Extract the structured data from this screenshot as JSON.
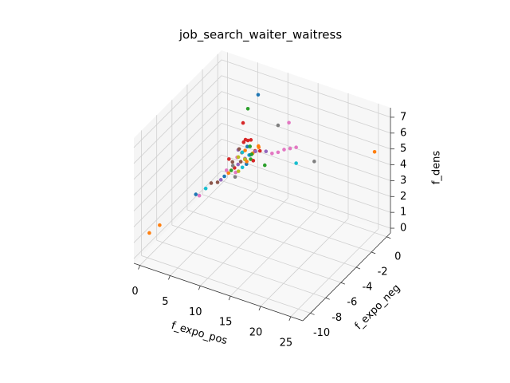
{
  "chart_data": {
    "type": "scatter3d",
    "title": "job_search_waiter_waitress",
    "xlabel": "f_expo_pos",
    "ylabel": "f_expo_neg",
    "zlabel": "f_dens",
    "xlim": [
      -1,
      27
    ],
    "ylim": [
      -11,
      0.5
    ],
    "zlim": [
      -0.3,
      7.6
    ],
    "xticks": [
      0,
      5,
      10,
      15,
      20,
      25
    ],
    "yticks": [
      -10,
      -8,
      -6,
      -4,
      -2,
      0
    ],
    "zticks": [
      0,
      1,
      2,
      3,
      4,
      5,
      6,
      7
    ],
    "grid": true,
    "series": [
      {
        "x": [
          0.3,
          1,
          25,
          5.7,
          4,
          3.2,
          9,
          10.8,
          15,
          12,
          0.3,
          0.5,
          0.8,
          1.2,
          8,
          9,
          10,
          11,
          12,
          6,
          7,
          2,
          2.3,
          2.5,
          2.8,
          3,
          3.2,
          3.5,
          3.8,
          4,
          4.2,
          4.5,
          4.8,
          5,
          5.2,
          5.5,
          2.2,
          2.6,
          3,
          3.3,
          3.6,
          3.9,
          4.3,
          4.6,
          2,
          2.4,
          2.8,
          3.1,
          3.4,
          3.7,
          4.1,
          4.4,
          4.7,
          5.1,
          5.4,
          1.8,
          1.5,
          2.1,
          2.9,
          3.3,
          3.6,
          4,
          4.5,
          6.8,
          5.8,
          6
        ],
        "y": [
          -10,
          -9.2,
          0,
          0,
          0,
          0,
          0,
          0,
          0,
          0,
          -3.9,
          -3.6,
          -3,
          -2.6,
          0,
          0,
          0,
          0,
          0,
          0,
          0,
          -1.5,
          -1.2,
          -1,
          -0.8,
          -0.5,
          -0.3,
          0,
          -0.2,
          -0.4,
          0,
          -0.1,
          0,
          -0.3,
          0,
          -0.2,
          -0.6,
          -0.3,
          0,
          -0.7,
          -0.4,
          0,
          -0.6,
          -0.2,
          -0.9,
          0,
          -0.2,
          -0.9,
          -1.2,
          -1,
          -0.8,
          -0.5,
          -0.7,
          -0.5,
          -0.4,
          -1.8,
          -2,
          -1.3,
          -1.1,
          0,
          0,
          0,
          0,
          0,
          0,
          -0.2
        ],
        "z": [
          1.3,
          1.5,
          4.8,
          5.9,
          4.8,
          3.8,
          4.4,
          4.8,
          2.9,
          2.4,
          0.8,
          0.6,
          0.8,
          1,
          2.5,
          2.7,
          3,
          3.2,
          3.4,
          2.4,
          2.5,
          1,
          1.1,
          1.2,
          1.3,
          1.4,
          1.5,
          1.6,
          1.7,
          1.8,
          1.9,
          2,
          2.1,
          2.2,
          2.3,
          2.4,
          1.5,
          1.7,
          1.9,
          2,
          2.2,
          2.4,
          2.5,
          2.6,
          1.8,
          2,
          2.2,
          1.1,
          1,
          1.3,
          1.5,
          1.6,
          1.9,
          2,
          1.9,
          0.9,
          0.8,
          1.3,
          1.6,
          2.6,
          2.8,
          2.8,
          2.9,
          1.6,
          2.6,
          2.8
        ],
        "colors": [
          "#ff7f0e",
          "#ff7f0e",
          "#ff7f0e",
          "#1f77b4",
          "#2ca02c",
          "#d62728",
          "#7f7f7f",
          "#e377c2",
          "#7f7f7f",
          "#17becf",
          "#1f77b4",
          "#e377c2",
          "#17becf",
          "#8c564b",
          "#e377c2",
          "#e377c2",
          "#e377c2",
          "#e377c2",
          "#e377c2",
          "#d62728",
          "#9467bd",
          "#1f77b4",
          "#ff7f0e",
          "#2ca02c",
          "#d62728",
          "#9467bd",
          "#8c564b",
          "#e377c2",
          "#7f7f7f",
          "#bcbd22",
          "#17becf",
          "#1f77b4",
          "#ff7f0e",
          "#2ca02c",
          "#d62728",
          "#9467bd",
          "#8c564b",
          "#e377c2",
          "#7f7f7f",
          "#bcbd22",
          "#17becf",
          "#1f77b4",
          "#ff7f0e",
          "#2ca02c",
          "#d62728",
          "#9467bd",
          "#8c564b",
          "#e377c2",
          "#7f7f7f",
          "#bcbd22",
          "#17becf",
          "#1f77b4",
          "#ff7f0e",
          "#2ca02c",
          "#d62728",
          "#9467bd",
          "#8c564b",
          "#e377c2",
          "#7f7f7f",
          "#d62728",
          "#d62728",
          "#d62728",
          "#d62728",
          "#2ca02c",
          "#ff7f0e",
          "#ff7f0e"
        ]
      }
    ]
  }
}
